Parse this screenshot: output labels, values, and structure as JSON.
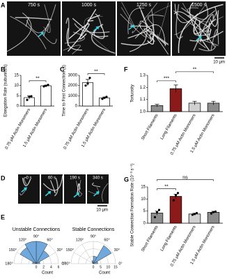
{
  "image_panels": [
    {
      "panel": "A",
      "frames": [
        "750 s",
        "1000 s",
        "1250 s",
        "1500 s"
      ],
      "scale_bar": "10 μm"
    },
    {
      "panel": "D",
      "frames": [
        "0 s",
        "60 s",
        "190 s",
        "340 s"
      ],
      "scale_bar": "10 μm"
    }
  ],
  "chart_data": [
    {
      "panel": "B",
      "type": "bar",
      "ylabel": "Elongation Rate (subunits/s)",
      "categories": [
        "0.75 μM Actin Monomers",
        "1.5 μM Actin Monomers"
      ],
      "values": [
        4.1,
        9.9
      ],
      "errors": [
        0.8,
        0.3
      ],
      "points": [
        [
          3.0,
          4.6,
          4.8
        ],
        [
          9.6,
          9.9,
          10.3
        ]
      ],
      "colors": [
        "#ffffff",
        "#ffffff"
      ],
      "ylim": [
        0,
        15
      ],
      "yticks": [
        0,
        5,
        10,
        15
      ],
      "annotations": [
        {
          "text": "**",
          "between": [
            0,
            1
          ]
        }
      ]
    },
    {
      "panel": "C",
      "type": "bar",
      "ylabel": "Time to First Connection (s)",
      "categories": [
        "0.75 μM Actin Monomers",
        "1.5 μM Actin Monomers"
      ],
      "values": [
        2300,
        800
      ],
      "errors": [
        300,
        80
      ],
      "points": [
        [
          2000,
          2200,
          2750
        ],
        [
          700,
          800,
          900
        ]
      ],
      "colors": [
        "#ffffff",
        "#ffffff"
      ],
      "ylim": [
        0,
        3000
      ],
      "yticks": [
        0,
        1000,
        2000,
        3000
      ],
      "annotations": [
        {
          "text": "**",
          "between": [
            0,
            1
          ]
        }
      ]
    },
    {
      "panel": "F",
      "type": "bar",
      "ylabel": "Tortuosity",
      "categories": [
        "Short Filaments",
        "Long Filaments",
        "0.75 μM Actin Monomers",
        "1.5 μM Actin Monomers"
      ],
      "values": [
        1.05,
        1.19,
        1.07,
        1.07
      ],
      "errors": [
        0.01,
        0.03,
        0.015,
        0.015
      ],
      "colors": [
        "#8c8c8c",
        "#8b1a1a",
        "#d0d0d0",
        "#8c8c8c"
      ],
      "ylim": [
        1,
        1.3
      ],
      "yticks": [
        {
          "value": 1,
          "label": "1.0"
        },
        1.1,
        1.2,
        1.3
      ],
      "annotations": [
        {
          "text": "***",
          "between": [
            0,
            1
          ]
        },
        {
          "text": "**",
          "between": [
            1,
            3
          ]
        }
      ]
    },
    {
      "panel": "G",
      "type": "bar",
      "ylabel": "Stable Connection Formation Rate (10⁻³ s⁻¹)",
      "categories": [
        "Short Filaments",
        "Long Filaments",
        "0.75 μM Actin Monomers",
        "1.5 μM Actin Monomers"
      ],
      "values": [
        4.2,
        11.1,
        3.8,
        4.5
      ],
      "errors": [
        0.8,
        0.9,
        0.3,
        0.4
      ],
      "points": [
        [
          2.5,
          4.5,
          5.5
        ],
        [
          9.5,
          11.5,
          12.5
        ],
        [
          3.5,
          3.8,
          4.2
        ],
        [
          4.0,
          4.6,
          4.8
        ]
      ],
      "colors": [
        "#8c8c8c",
        "#8b1a1a",
        "#d0d0d0",
        "#8c8c8c"
      ],
      "ylim": [
        0,
        15
      ],
      "yticks": [
        0,
        5,
        10,
        15
      ],
      "annotations": [
        {
          "text": "**",
          "between": [
            0,
            1
          ]
        },
        {
          "text": "ns",
          "between": [
            0,
            3
          ]
        }
      ]
    },
    {
      "panel": "E",
      "type": "polar",
      "title": "Unstable Connections",
      "rlabel": "Count",
      "bins": [
        0,
        30,
        60,
        90,
        120,
        150,
        180
      ],
      "counts": [
        1,
        4,
        6,
        6,
        5,
        1
      ],
      "color": "#6fa8dc",
      "rlim": [
        0,
        6
      ],
      "rticks": [
        0,
        2,
        4,
        6
      ],
      "thetaticks": [
        {
          "value": 0,
          "label": "0°"
        },
        {
          "value": 30,
          "label": "30°"
        },
        {
          "value": 60,
          "label": "60°"
        },
        {
          "value": 90,
          "label": "90°"
        },
        {
          "value": 120,
          "label": "120°"
        },
        {
          "value": 150,
          "label": "150°"
        },
        {
          "value": 180,
          "label": "180°"
        }
      ]
    },
    {
      "type": "polar",
      "title": "Stable Connections",
      "rlabel": "Count",
      "bins": [
        0,
        30,
        60,
        90,
        120,
        150,
        180
      ],
      "counts": [
        3,
        14,
        5,
        2,
        1,
        0
      ],
      "color": "#6fa8dc",
      "rlim": [
        0,
        15
      ],
      "rticks": [
        0,
        5,
        10,
        15
      ],
      "thetaticks": [
        {
          "value": 0,
          "label": "0°"
        },
        {
          "value": 30,
          "label": "30°"
        },
        {
          "value": 60,
          "label": "60°"
        },
        {
          "value": 90,
          "label": "90°"
        },
        {
          "value": 120,
          "label": "120°"
        },
        {
          "value": 150,
          "label": "150°"
        },
        {
          "value": 180,
          "label": "180°"
        }
      ]
    }
  ]
}
